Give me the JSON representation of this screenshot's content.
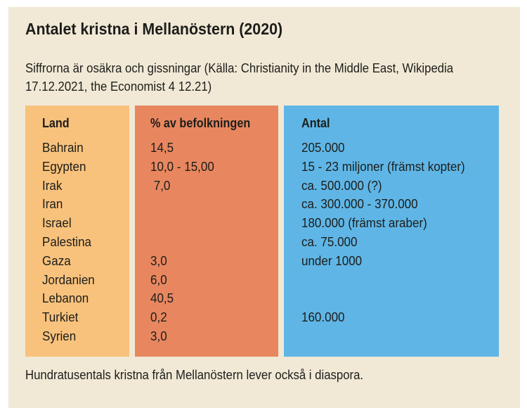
{
  "title": "Antalet kristna i Mellanöstern (2020)",
  "subtitle": "Siffrorna är osäkra och gissningar (Källa: Christianity in the Middle East, Wikipedia 17.12.2021, the Economist 4 12.21)",
  "columns": {
    "land": "Land",
    "percent": "% av befolkningen",
    "antal": "Antal"
  },
  "rows": [
    {
      "land": "Bahrain",
      "percent": "14,5",
      "antal": "205.000"
    },
    {
      "land": "Egypten",
      "percent": "10,0 - 15,00",
      "antal": "15 - 23 miljoner (främst kopter)"
    },
    {
      "land": "Irak",
      "percent": " 7,0",
      "antal": "ca. 500.000 (?)"
    },
    {
      "land": "Iran",
      "percent": "",
      "antal": "ca. 300.000 - 370.000"
    },
    {
      "land": "Israel",
      "percent": "",
      "antal": "180.000 (främst araber)"
    },
    {
      "land": "Palestina",
      "percent": "",
      "antal": "ca. 75.000"
    },
    {
      "land": "Gaza",
      "percent": "3,0",
      "antal": "under 1000"
    },
    {
      "land": "Jordanien",
      "percent": "6,0",
      "antal": ""
    },
    {
      "land": "Lebanon",
      "percent": "40,5",
      "antal": ""
    },
    {
      "land": "Turkiet",
      "percent": "0,2",
      "antal": "160.000"
    },
    {
      "land": "Syrien",
      "percent": "3,0",
      "antal": ""
    }
  ],
  "footer": "Hundratusentals kristna från Mellanöstern lever också i diaspora.",
  "colors": {
    "background": "#f1e9d6",
    "land_column": "#f8c27c",
    "percent_column": "#e8875f",
    "antal_column": "#5fb6e6"
  }
}
